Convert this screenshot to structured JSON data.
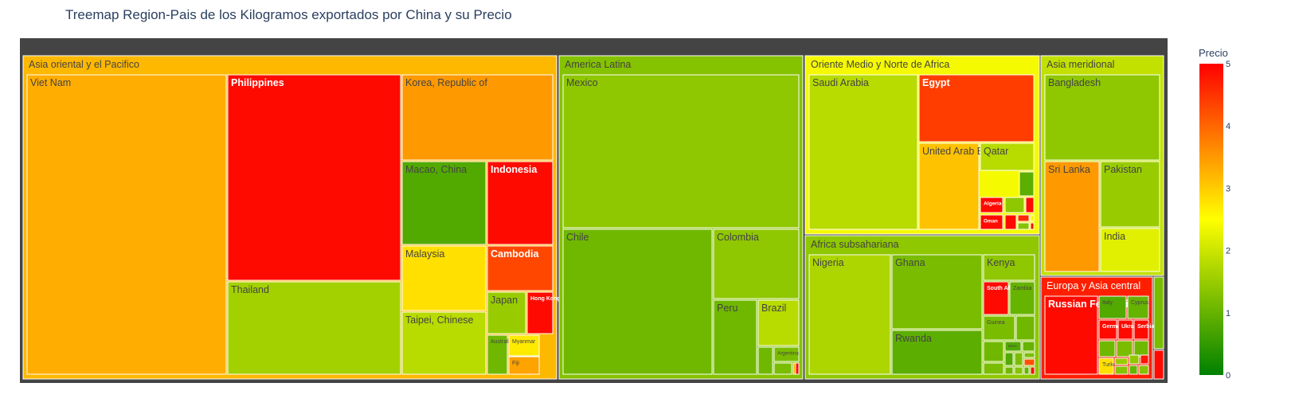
{
  "chart_data": {
    "type": "treemap",
    "title": "Treemap Region-Pais de los Kilogramos exportados por China y su Precio",
    "colorbar": {
      "title": "Precio",
      "ticks": [
        "0",
        "1",
        "2",
        "3",
        "4",
        "5"
      ],
      "min": 0,
      "max": 5,
      "colorscale": [
        "#008000",
        "#ffff00",
        "#ff0000"
      ]
    },
    "regions": [
      {
        "name": "Asia oriental y el Pacifico",
        "precio": 3.2,
        "countries": [
          {
            "name": "Viet Nam",
            "precio": 3.3
          },
          {
            "name": "Philippines",
            "precio": 4.9
          },
          {
            "name": "Thailand",
            "precio": 1.6
          },
          {
            "name": "Korea, Republic of",
            "precio": 3.5
          },
          {
            "name": "Macao, China",
            "precio": 0.8
          },
          {
            "name": "Indonesia",
            "precio": 4.9
          },
          {
            "name": "Malaysia",
            "precio": 2.8
          },
          {
            "name": "Cambodia",
            "precio": 4.3
          },
          {
            "name": "Taipei, Chinese",
            "precio": 1.8
          },
          {
            "name": "Japan",
            "precio": 1.5
          },
          {
            "name": "Hong Kong, China",
            "precio": 4.9
          },
          {
            "name": "Australia",
            "precio": 1.1
          },
          {
            "name": "Myanmar",
            "precio": 2.7
          },
          {
            "name": "Fiji",
            "precio": 3.4
          }
        ]
      },
      {
        "name": "America Latina",
        "precio": 1.3,
        "countries": [
          {
            "name": "Mexico",
            "precio": 1.4
          },
          {
            "name": "Chile",
            "precio": 1.1
          },
          {
            "name": "Colombia",
            "precio": 1.4
          },
          {
            "name": "Peru",
            "precio": 1.1
          },
          {
            "name": "Brazil",
            "precio": 1.8
          },
          {
            "name": "Argentina",
            "precio": 1.2
          }
        ]
      },
      {
        "name": "Oriente Medio y Norte de Africa",
        "precio": 2.4,
        "countries": [
          {
            "name": "Saudi Arabia",
            "precio": 1.8
          },
          {
            "name": "Egypt",
            "precio": 4.4
          },
          {
            "name": "United Arab Emirates",
            "precio": 3.1
          },
          {
            "name": "Qatar",
            "precio": 1.8
          },
          {
            "name": "Algeria",
            "precio": 4.9
          },
          {
            "name": "Oman",
            "precio": 4.9
          }
        ]
      },
      {
        "name": "Africa subsahariana",
        "precio": 1.4,
        "countries": [
          {
            "name": "Nigeria",
            "precio": 1.7
          },
          {
            "name": "Ghana",
            "precio": 1.2
          },
          {
            "name": "Kenya",
            "precio": 1.4
          },
          {
            "name": "Rwanda",
            "precio": 0.9
          },
          {
            "name": "South Africa",
            "precio": 4.9
          },
          {
            "name": "Zambia",
            "precio": 1.0
          },
          {
            "name": "Guinea",
            "precio": 1.2
          },
          {
            "name": "Benin",
            "precio": 0.8
          }
        ]
      },
      {
        "name": "Asia meridional",
        "precio": 1.9,
        "countries": [
          {
            "name": "Bangladesh",
            "precio": 1.4
          },
          {
            "name": "Sri Lanka",
            "precio": 3.5
          },
          {
            "name": "Pakistan",
            "precio": 1.5
          },
          {
            "name": "India",
            "precio": 2.2
          }
        ]
      },
      {
        "name": "Europa y Asia central",
        "precio": 4.7,
        "countries": [
          {
            "name": "Russian Federation",
            "precio": 4.9
          },
          {
            "name": "Italy",
            "precio": 0.8
          },
          {
            "name": "Cyprus",
            "precio": 1.0
          },
          {
            "name": "Germany",
            "precio": 4.9
          },
          {
            "name": "Ukraine",
            "precio": 4.9
          },
          {
            "name": "Serbia",
            "precio": 4.9
          },
          {
            "name": "Turkey",
            "precio": 2.8
          }
        ]
      }
    ]
  }
}
